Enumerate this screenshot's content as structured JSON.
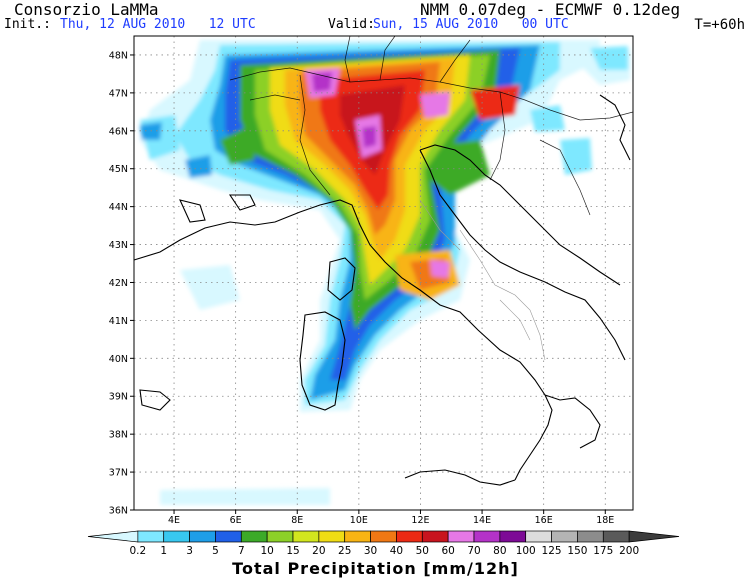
{
  "header": {
    "title": "Consorzio LaMMa",
    "model": "NMM 0.07deg - ECMWF 0.12deg",
    "init_label": "Init.:",
    "init_value": "Thu, 12 AUG 2010   12 UTC",
    "valid_label": "Valid:",
    "valid_value": "Sun, 15 AUG 2010   00 UTC",
    "forecast_step": "T=+60h"
  },
  "map": {
    "lat_ticks": [
      "48N",
      "47N",
      "46N",
      "45N",
      "44N",
      "43N",
      "42N",
      "41N",
      "40N",
      "39N",
      "38N",
      "37N",
      "36N"
    ],
    "lon_ticks": [
      "4E",
      "6E",
      "8E",
      "10E",
      "12E",
      "14E",
      "16E",
      "18E"
    ],
    "lat_range": [
      36,
      48.5
    ],
    "lon_range": [
      2.7,
      18.9
    ],
    "field": "Total Precipitation"
  },
  "colorbar": {
    "title": "Total Precipitation [mm/12h]",
    "levels": [
      "0.2",
      "1",
      "3",
      "5",
      "7",
      "10",
      "15",
      "20",
      "25",
      "30",
      "40",
      "50",
      "60",
      "70",
      "80",
      "100",
      "125",
      "150",
      "175",
      "200"
    ],
    "colors": [
      "#d8f8ff",
      "#7ee8ff",
      "#38c8f0",
      "#1e9ee8",
      "#2060e8",
      "#3caa28",
      "#8cd028",
      "#d2e61e",
      "#f0dc14",
      "#f8b414",
      "#f07814",
      "#ec2a14",
      "#c8141e",
      "#e678e6",
      "#b432c8",
      "#7d0a96",
      "#dcdcdc",
      "#b4b4b4",
      "#8c8c8c",
      "#5a5a5a",
      "#3c3c3c"
    ]
  }
}
